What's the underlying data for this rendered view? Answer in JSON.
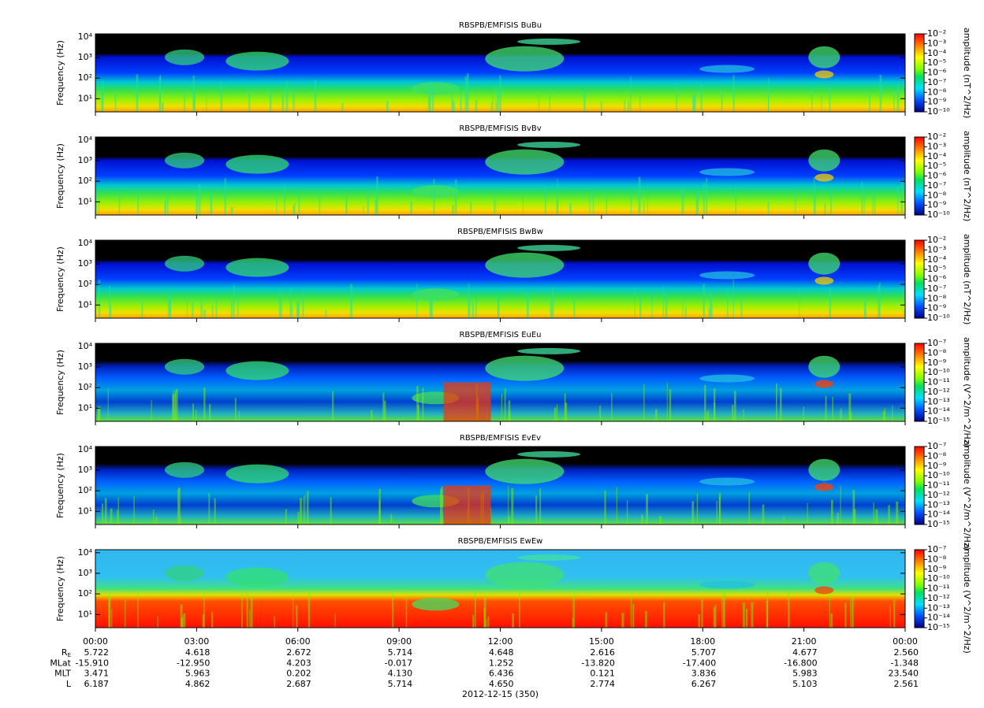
{
  "chart_data": [
    {
      "type": "spectrogram",
      "title": "RBSPB/EMFISIS  BuBu",
      "ylabel": "Frequency (Hz)",
      "log_y": true,
      "ylim": [
        2.3,
        14000
      ],
      "yticks": [
        {
          "value": 10,
          "label": "10¹"
        },
        {
          "value": 100,
          "label": "10²"
        },
        {
          "value": 1000,
          "label": "10³"
        },
        {
          "value": 10000,
          "label": "10⁴"
        }
      ],
      "colorbar": {
        "label": "amplitude (nT^2/Hz)",
        "log": true,
        "lim": [
          1e-10,
          0.01
        ],
        "ticks": [
          {
            "value": 0.01,
            "label": "10⁻²"
          },
          {
            "value": 0.001,
            "label": "10⁻³"
          },
          {
            "value": 0.0001,
            "label": "10⁻⁴"
          },
          {
            "value": 1e-05,
            "label": "10⁻⁵"
          },
          {
            "value": 1e-06,
            "label": "10⁻⁶"
          },
          {
            "value": 1e-07,
            "label": "10⁻⁷"
          },
          {
            "value": 1e-08,
            "label": "10⁻⁸"
          },
          {
            "value": 1e-09,
            "label": "10⁻⁹"
          },
          {
            "value": 1e-10,
            "label": "10⁻¹⁰"
          }
        ]
      }
    },
    {
      "type": "spectrogram",
      "title": "RBSPB/EMFISIS  BvBv",
      "ylabel": "Frequency (Hz)",
      "log_y": true,
      "ylim": [
        2.3,
        14000
      ],
      "yticks": [
        {
          "value": 10,
          "label": "10¹"
        },
        {
          "value": 100,
          "label": "10²"
        },
        {
          "value": 1000,
          "label": "10³"
        },
        {
          "value": 10000,
          "label": "10⁴"
        }
      ],
      "colorbar": {
        "label": "amplitude (nT^2/Hz)",
        "log": true,
        "lim": [
          1e-10,
          0.01
        ],
        "ticks": [
          {
            "value": 0.01,
            "label": "10⁻²"
          },
          {
            "value": 0.001,
            "label": "10⁻³"
          },
          {
            "value": 0.0001,
            "label": "10⁻⁴"
          },
          {
            "value": 1e-05,
            "label": "10⁻⁵"
          },
          {
            "value": 1e-06,
            "label": "10⁻⁶"
          },
          {
            "value": 1e-07,
            "label": "10⁻⁷"
          },
          {
            "value": 1e-08,
            "label": "10⁻⁸"
          },
          {
            "value": 1e-09,
            "label": "10⁻⁹"
          },
          {
            "value": 1e-10,
            "label": "10⁻¹⁰"
          }
        ]
      }
    },
    {
      "type": "spectrogram",
      "title": "RBSPB/EMFISIS  BwBw",
      "ylabel": "Frequency (Hz)",
      "log_y": true,
      "ylim": [
        2.3,
        14000
      ],
      "yticks": [
        {
          "value": 10,
          "label": "10¹"
        },
        {
          "value": 100,
          "label": "10²"
        },
        {
          "value": 1000,
          "label": "10³"
        },
        {
          "value": 10000,
          "label": "10⁴"
        }
      ],
      "colorbar": {
        "label": "amplitude (nT^2/Hz)",
        "log": true,
        "lim": [
          1e-10,
          0.01
        ],
        "ticks": [
          {
            "value": 0.01,
            "label": "10⁻²"
          },
          {
            "value": 0.001,
            "label": "10⁻³"
          },
          {
            "value": 0.0001,
            "label": "10⁻⁴"
          },
          {
            "value": 1e-05,
            "label": "10⁻⁵"
          },
          {
            "value": 1e-06,
            "label": "10⁻⁶"
          },
          {
            "value": 1e-07,
            "label": "10⁻⁷"
          },
          {
            "value": 1e-08,
            "label": "10⁻⁸"
          },
          {
            "value": 1e-09,
            "label": "10⁻⁹"
          },
          {
            "value": 1e-10,
            "label": "10⁻¹⁰"
          }
        ]
      }
    },
    {
      "type": "spectrogram",
      "title": "RBSPB/EMFISIS  EuEu",
      "ylabel": "Frequency (Hz)",
      "log_y": true,
      "ylim": [
        2.3,
        14000
      ],
      "yticks": [
        {
          "value": 10,
          "label": "10¹"
        },
        {
          "value": 100,
          "label": "10²"
        },
        {
          "value": 1000,
          "label": "10³"
        },
        {
          "value": 10000,
          "label": "10⁴"
        }
      ],
      "colorbar": {
        "label": "amplitude (V^2/m^2/Hz)",
        "log": true,
        "lim": [
          1e-15,
          1e-07
        ],
        "ticks": [
          {
            "value": 1e-07,
            "label": "10⁻⁷"
          },
          {
            "value": 1e-08,
            "label": "10⁻⁸"
          },
          {
            "value": 1e-09,
            "label": "10⁻⁹"
          },
          {
            "value": 1e-10,
            "label": "10⁻¹⁰"
          },
          {
            "value": 1e-11,
            "label": "10⁻¹¹"
          },
          {
            "value": 1e-12,
            "label": "10⁻¹²"
          },
          {
            "value": 1e-13,
            "label": "10⁻¹³"
          },
          {
            "value": 1e-14,
            "label": "10⁻¹⁴"
          },
          {
            "value": 1e-15,
            "label": "10⁻¹⁵"
          }
        ]
      }
    },
    {
      "type": "spectrogram",
      "title": "RBSPB/EMFISIS  EvEv",
      "ylabel": "Frequency (Hz)",
      "log_y": true,
      "ylim": [
        2.3,
        14000
      ],
      "yticks": [
        {
          "value": 10,
          "label": "10¹"
        },
        {
          "value": 100,
          "label": "10²"
        },
        {
          "value": 1000,
          "label": "10³"
        },
        {
          "value": 10000,
          "label": "10⁴"
        }
      ],
      "colorbar": {
        "label": "amplitude (V^2/m^2/Hz)",
        "log": true,
        "lim": [
          1e-15,
          1e-07
        ],
        "ticks": [
          {
            "value": 1e-07,
            "label": "10⁻⁷"
          },
          {
            "value": 1e-08,
            "label": "10⁻⁸"
          },
          {
            "value": 1e-09,
            "label": "10⁻⁹"
          },
          {
            "value": 1e-10,
            "label": "10⁻¹⁰"
          },
          {
            "value": 1e-11,
            "label": "10⁻¹¹"
          },
          {
            "value": 1e-12,
            "label": "10⁻¹²"
          },
          {
            "value": 1e-13,
            "label": "10⁻¹³"
          },
          {
            "value": 1e-14,
            "label": "10⁻¹⁴"
          },
          {
            "value": 1e-15,
            "label": "10⁻¹⁵"
          }
        ]
      }
    },
    {
      "type": "spectrogram",
      "title": "RBSPB/EMFISIS  EwEw",
      "ylabel": "Frequency (Hz)",
      "log_y": true,
      "ylim": [
        2.3,
        14000
      ],
      "yticks": [
        {
          "value": 10,
          "label": "10¹"
        },
        {
          "value": 100,
          "label": "10²"
        },
        {
          "value": 1000,
          "label": "10³"
        },
        {
          "value": 10000,
          "label": "10⁴"
        }
      ],
      "colorbar": {
        "label": "amplitude (V^2/m^2/Hz)",
        "log": true,
        "lim": [
          1e-15,
          1e-07
        ],
        "ticks": [
          {
            "value": 1e-07,
            "label": "10⁻⁷"
          },
          {
            "value": 1e-08,
            "label": "10⁻⁸"
          },
          {
            "value": 1e-09,
            "label": "10⁻⁹"
          },
          {
            "value": 1e-10,
            "label": "10⁻¹⁰"
          },
          {
            "value": 1e-11,
            "label": "10⁻¹¹"
          },
          {
            "value": 1e-12,
            "label": "10⁻¹²"
          },
          {
            "value": 1e-13,
            "label": "10⁻¹³"
          },
          {
            "value": 1e-14,
            "label": "10⁻¹⁴"
          },
          {
            "value": 1e-15,
            "label": "10⁻¹⁵"
          }
        ]
      }
    }
  ],
  "time_axis": {
    "xlim": [
      0,
      24
    ],
    "xticks": [
      {
        "value": 0,
        "label": "00:00"
      },
      {
        "value": 3,
        "label": "03:00"
      },
      {
        "value": 6,
        "label": "06:00"
      },
      {
        "value": 9,
        "label": "09:00"
      },
      {
        "value": 12,
        "label": "12:00"
      },
      {
        "value": 15,
        "label": "15:00"
      },
      {
        "value": 18,
        "label": "18:00"
      },
      {
        "value": 21,
        "label": "21:00"
      },
      {
        "value": 24,
        "label": "00:00"
      }
    ],
    "date_label": "2012-12-15 (350)"
  },
  "ephemeris": {
    "rows": [
      {
        "label": "R",
        "label_sub": "E",
        "values": [
          "5.722",
          "4.618",
          "2.672",
          "5.714",
          "4.648",
          "2.616",
          "5.707",
          "4.677",
          "2.560"
        ]
      },
      {
        "label": "MLat",
        "values": [
          "-15.910",
          "-12.950",
          "4.203",
          "-0.017",
          "1.252",
          "-13.820",
          "-17.400",
          "-16.800",
          "-1.348"
        ]
      },
      {
        "label": "MLT",
        "values": [
          "3.471",
          "5.963",
          "0.202",
          "4.130",
          "6.436",
          "0.121",
          "3.836",
          "5.983",
          "23.540"
        ]
      },
      {
        "label": "L",
        "values": [
          "6.187",
          "4.862",
          "2.687",
          "5.714",
          "4.650",
          "2.774",
          "6.267",
          "5.103",
          "2.561"
        ]
      }
    ]
  }
}
